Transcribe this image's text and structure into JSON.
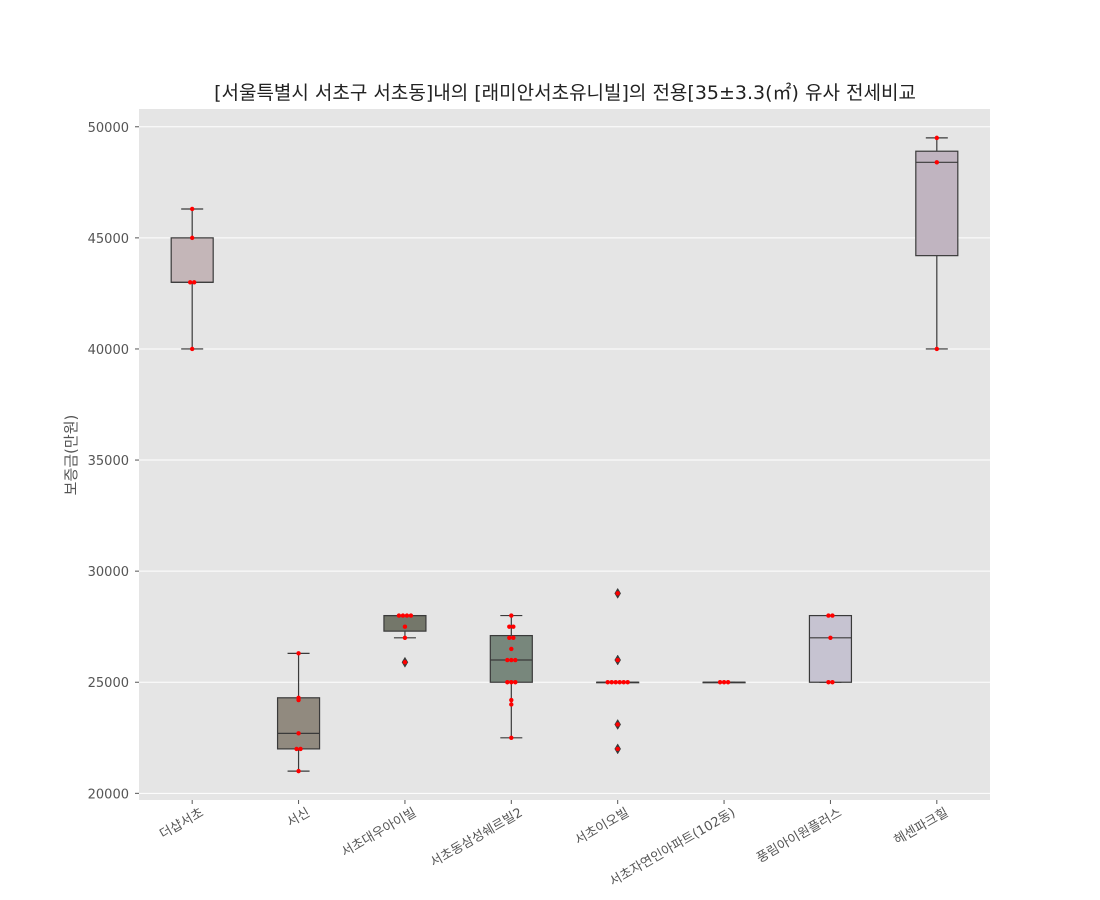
{
  "chart_data": {
    "type": "box",
    "title": "[서울특별시 서초구 서초동]내의 [래미안서초유니빌]의 전용[35±3.3(㎡) 유사 전세비교",
    "xlabel": "",
    "ylabel": "보증금(만원)",
    "ylim": [
      19700,
      50800
    ],
    "yticks": [
      20000,
      25000,
      30000,
      35000,
      40000,
      45000,
      50000
    ],
    "grid": true,
    "colors": {
      "background": "#e5e5e5",
      "grid": "#ffffff",
      "box_edge": "#3a3a3a",
      "point": "#ff0000",
      "outlier": "#3a3a3a"
    },
    "categories": [
      {
        "name": "더샵서초",
        "box_color": "#c4b6b8",
        "stats": {
          "whislo": 40000,
          "q1": 43000,
          "med": 43000,
          "q3": 45000,
          "whishi": 46300
        },
        "outliers": [],
        "points": [
          40000,
          43000,
          43000,
          45000,
          46300
        ]
      },
      {
        "name": "서신",
        "box_color": "#918a7f",
        "stats": {
          "whislo": 21000,
          "q1": 22000,
          "med": 22700,
          "q3": 24300,
          "whishi": 26300
        },
        "outliers": [],
        "points": [
          21000,
          22000,
          22000,
          22700,
          24200,
          24300,
          26300
        ]
      },
      {
        "name": "서초대우아이빌",
        "box_color": "#74776a",
        "stats": {
          "whislo": 27000,
          "q1": 27300,
          "med": 28000,
          "q3": 28000,
          "whishi": 28000
        },
        "outliers": [
          25900
        ],
        "points": [
          25900,
          27000,
          27500,
          28000,
          28000,
          28000,
          28000
        ]
      },
      {
        "name": "서초동삼성쉐르빌2",
        "box_color": "#78877c",
        "stats": {
          "whislo": 22500,
          "q1": 25000,
          "med": 26000,
          "q3": 27100,
          "whishi": 28000
        },
        "outliers": [],
        "points": [
          22500,
          24000,
          24200,
          25000,
          25000,
          25000,
          26000,
          26000,
          26000,
          26500,
          27000,
          27000,
          27500,
          27500,
          28000
        ]
      },
      {
        "name": "서초이오빌",
        "box_color": "#74776a",
        "stats": {
          "whislo": 25000,
          "q1": 25000,
          "med": 25000,
          "q3": 25000,
          "whishi": 25000
        },
        "outliers": [
          22000,
          23100,
          26000,
          29000
        ],
        "points": [
          22000,
          23100,
          25000,
          25000,
          25000,
          25000,
          25000,
          25000,
          26000,
          29000
        ]
      },
      {
        "name": "서초자연인아파트(102동)",
        "box_color": "#8fb3b5",
        "stats": {
          "whislo": 25000,
          "q1": 25000,
          "med": 25000,
          "q3": 25000,
          "whishi": 25000
        },
        "outliers": [],
        "points": [
          25000,
          25000,
          25000
        ]
      },
      {
        "name": "풍림아이원플러스",
        "box_color": "#c6c3d1",
        "stats": {
          "whislo": 25000,
          "q1": 25000,
          "med": 27000,
          "q3": 28000,
          "whishi": 28000
        },
        "outliers": [],
        "points": [
          25000,
          25000,
          27000,
          28000,
          28000
        ]
      },
      {
        "name": "헤센파크힐",
        "box_color": "#c0b4c0",
        "stats": {
          "whislo": 40000,
          "q1": 44200,
          "med": 48400,
          "q3": 48900,
          "whishi": 49500
        },
        "outliers": [],
        "points": [
          40000,
          48400,
          49500
        ]
      }
    ]
  }
}
